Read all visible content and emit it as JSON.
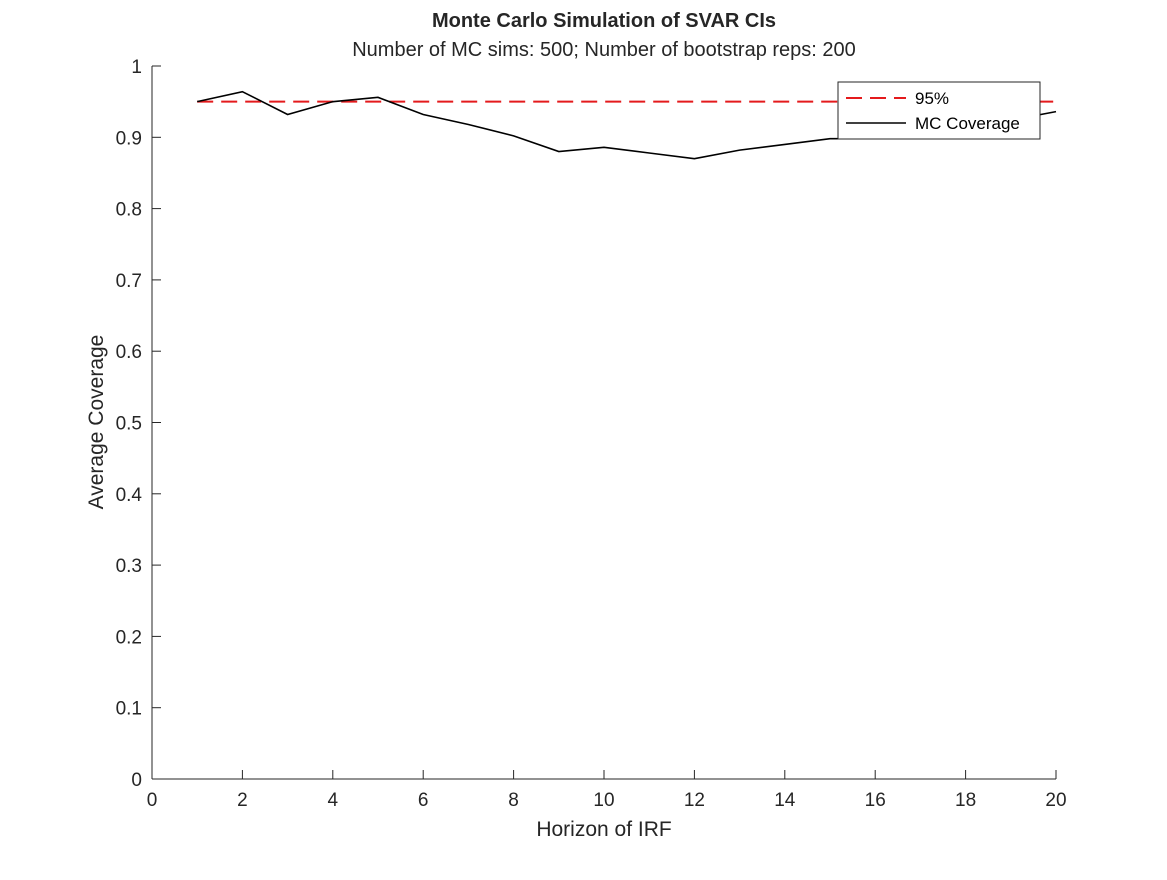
{
  "chart_data": {
    "type": "line",
    "title": "Monte Carlo Simulation of SVAR CIs",
    "subtitle": "Number of MC sims: 500; Number of bootstrap reps: 200",
    "xlabel": "Horizon of IRF",
    "ylabel": "Average Coverage",
    "xlim": [
      0,
      20
    ],
    "ylim": [
      0,
      1
    ],
    "xticks": [
      0,
      2,
      4,
      6,
      8,
      10,
      12,
      14,
      16,
      18,
      20
    ],
    "yticks": [
      0,
      0.1,
      0.2,
      0.3,
      0.4,
      0.5,
      0.6,
      0.7,
      0.8,
      0.9,
      1
    ],
    "xtick_labels": [
      "0",
      "2",
      "4",
      "6",
      "8",
      "10",
      "12",
      "14",
      "16",
      "18",
      "20"
    ],
    "ytick_labels": [
      "0",
      "0.1",
      "0.2",
      "0.3",
      "0.4",
      "0.5",
      "0.6",
      "0.7",
      "0.8",
      "0.9",
      "1"
    ],
    "grid": false,
    "legend_position": "top-right",
    "series": [
      {
        "name": "95%",
        "style": "dashed",
        "color": "#e41a1c",
        "x": [
          1,
          2,
          3,
          4,
          5,
          6,
          7,
          8,
          9,
          10,
          11,
          12,
          13,
          14,
          15,
          16,
          17,
          18,
          19,
          20
        ],
        "y": [
          0.95,
          0.95,
          0.95,
          0.95,
          0.95,
          0.95,
          0.95,
          0.95,
          0.95,
          0.95,
          0.95,
          0.95,
          0.95,
          0.95,
          0.95,
          0.95,
          0.95,
          0.95,
          0.95,
          0.95
        ]
      },
      {
        "name": "MC Coverage",
        "style": "solid",
        "color": "#000000",
        "x": [
          1,
          2,
          3,
          4,
          5,
          6,
          7,
          8,
          9,
          10,
          11,
          12,
          13,
          14,
          15,
          16,
          17,
          18,
          19,
          20
        ],
        "y": [
          0.95,
          0.964,
          0.932,
          0.95,
          0.956,
          0.932,
          0.918,
          0.902,
          0.88,
          0.886,
          0.878,
          0.87,
          0.882,
          0.89,
          0.898,
          0.898,
          0.906,
          0.914,
          0.924,
          0.936
        ]
      }
    ]
  }
}
